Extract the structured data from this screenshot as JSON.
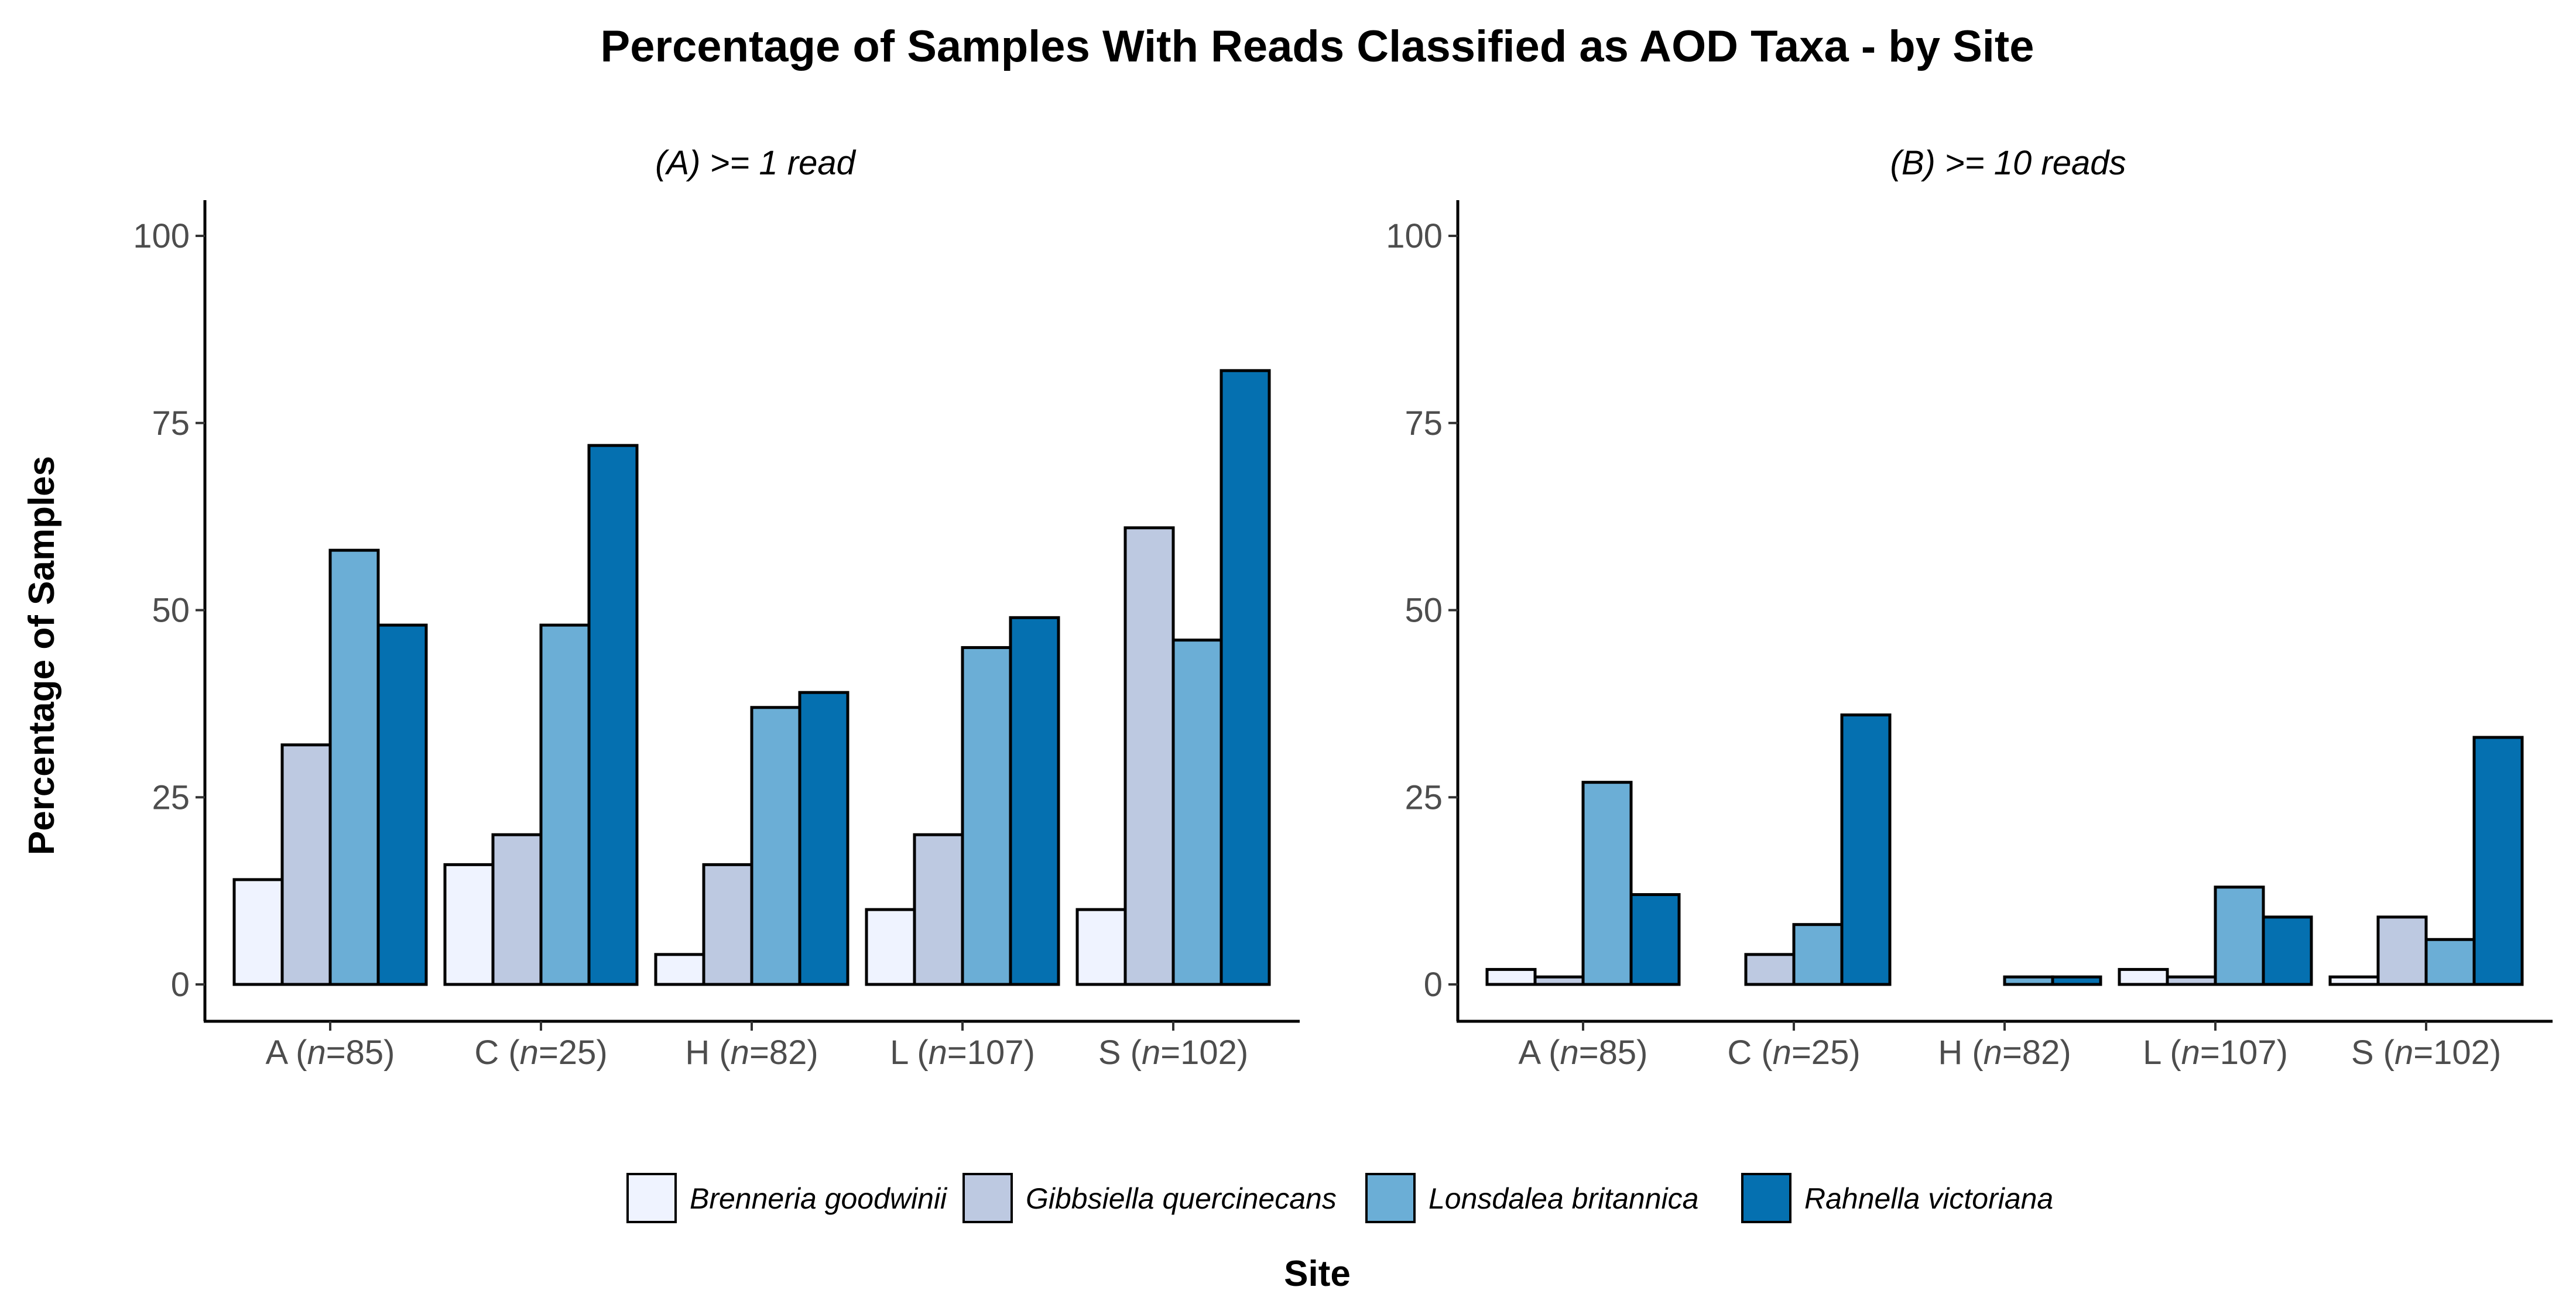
{
  "chart_data": {
    "type": "bar",
    "title": "Percentage of Samples With Reads Classified as AOD Taxa - by Site",
    "xlabel": "Site",
    "ylabel": "Percentage of Samples",
    "ylim": [
      0,
      100
    ],
    "yticks": [
      0,
      25,
      50,
      75,
      100
    ],
    "grid": false,
    "legend_position": "bottom",
    "categories": [
      {
        "site": "A",
        "n_prefix": "(",
        "n_italic": "n",
        "n_value": "=85)"
      },
      {
        "site": "C",
        "n_prefix": "(",
        "n_italic": "n",
        "n_value": "=25)"
      },
      {
        "site": "H",
        "n_prefix": "(",
        "n_italic": "n",
        "n_value": "=82)"
      },
      {
        "site": "L",
        "n_prefix": "(",
        "n_italic": "n",
        "n_value": "=107)"
      },
      {
        "site": "S",
        "n_prefix": "(",
        "n_italic": "n",
        "n_value": "=102)"
      }
    ],
    "series": [
      {
        "name": "Brenneria goodwinii",
        "color": "#eff3ff"
      },
      {
        "name": "Gibbsiella quercinecans",
        "color": "#bdc9e1"
      },
      {
        "name": "Lonsdalea britannica",
        "color": "#6baed6"
      },
      {
        "name": "Rahnella victoriana",
        "color": "#0570b0"
      }
    ],
    "panels": [
      {
        "title": "(A) >= 1 read",
        "values": [
          [
            14,
            16,
            4,
            10,
            10
          ],
          [
            32,
            20,
            16,
            20,
            61
          ],
          [
            58,
            48,
            37,
            45,
            46
          ],
          [
            48,
            72,
            39,
            49,
            82
          ]
        ]
      },
      {
        "title": "(B) >= 10 reads",
        "values": [
          [
            2,
            0,
            0,
            2,
            1
          ],
          [
            1,
            4,
            0,
            1,
            9
          ],
          [
            27,
            8,
            1,
            13,
            6
          ],
          [
            12,
            36,
            1,
            9,
            33
          ]
        ]
      }
    ]
  }
}
